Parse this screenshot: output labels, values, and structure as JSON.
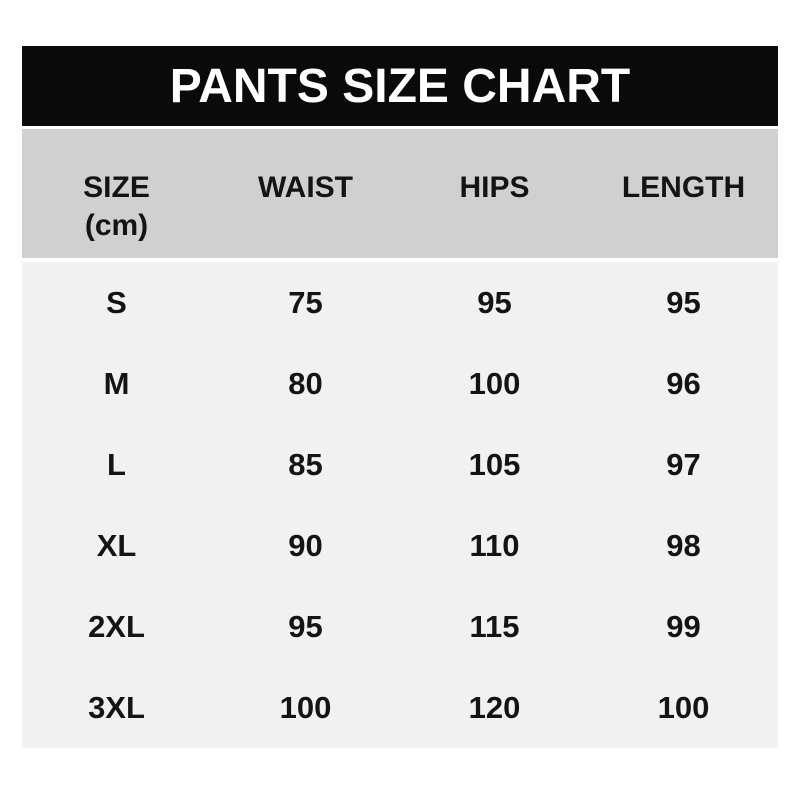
{
  "title": "PANTS SIZE CHART",
  "colors": {
    "title_band_bg": "#0a0a0a",
    "title_text": "#ffffff",
    "header_band_bg": "#d0d0d0",
    "body_bg": "#f1f1f1",
    "text": "#141414",
    "page_bg": "#ffffff"
  },
  "table": {
    "header": {
      "size_label": "SIZE",
      "size_unit": "(cm)",
      "waist": "WAIST",
      "hips": "HIPS",
      "length": "LENGTH"
    }
  },
  "chart_data": {
    "type": "table",
    "title": "PANTS SIZE CHART",
    "columns": [
      "SIZE (cm)",
      "WAIST",
      "HIPS",
      "LENGTH"
    ],
    "rows": [
      [
        "S",
        75,
        95,
        95
      ],
      [
        "M",
        80,
        100,
        96
      ],
      [
        "L",
        85,
        105,
        97
      ],
      [
        "XL",
        90,
        110,
        98
      ],
      [
        "2XL",
        95,
        115,
        99
      ],
      [
        "3XL",
        100,
        120,
        100
      ]
    ]
  }
}
